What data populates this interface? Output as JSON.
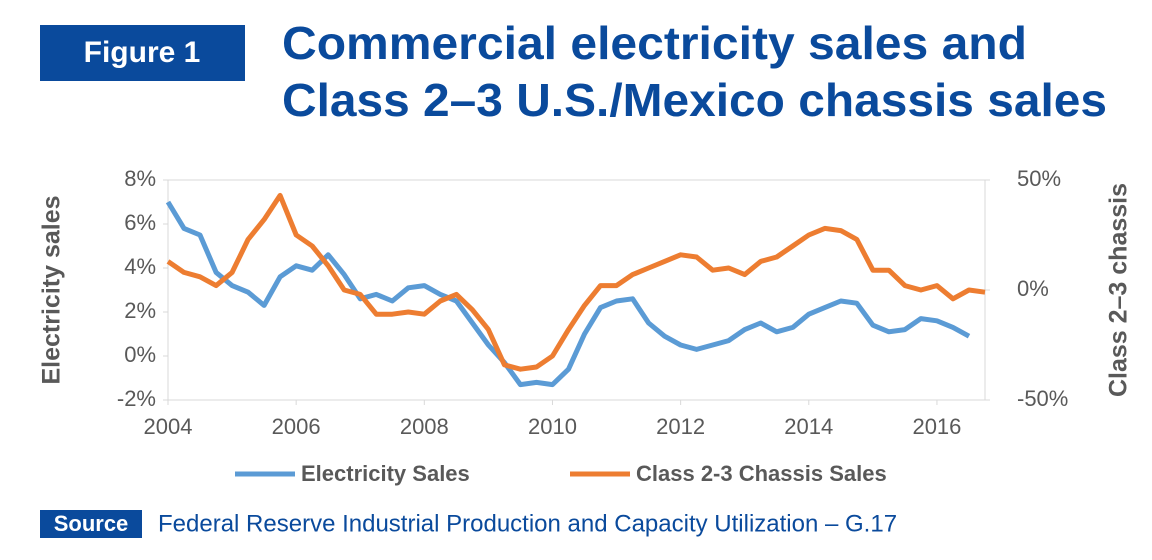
{
  "figure_label": "Figure 1",
  "chart_data": {
    "type": "line",
    "title": [
      "Commercial electricity sales and",
      "Class 2–3 U.S./Mexico chassis sales"
    ],
    "y_label": "Electricity sales",
    "y2_label": "Class 2–3 chassis",
    "x": [
      2004,
      2004.25,
      2004.5,
      2004.75,
      2005,
      2005.25,
      2005.5,
      2005.75,
      2006,
      2006.25,
      2006.5,
      2006.75,
      2007,
      2007.25,
      2007.5,
      2007.75,
      2008,
      2008.25,
      2008.5,
      2008.75,
      2009,
      2009.25,
      2009.5,
      2009.75,
      2010,
      2010.25,
      2010.5,
      2010.75,
      2011,
      2011.25,
      2011.5,
      2011.75,
      2012,
      2012.25,
      2012.5,
      2012.75,
      2013,
      2013.25,
      2013.5,
      2013.75,
      2014,
      2014.25,
      2014.5,
      2014.75,
      2015,
      2015.25,
      2015.5,
      2015.75,
      2016,
      2016.25,
      2016.5,
      2016.75
    ],
    "series": [
      {
        "name": "Electricity Sales",
        "color": "#5b9bd5",
        "axis": "y",
        "values": [
          7.0,
          5.8,
          5.5,
          3.8,
          3.2,
          2.9,
          2.3,
          3.6,
          4.1,
          3.9,
          4.6,
          3.7,
          2.6,
          2.8,
          2.5,
          3.1,
          3.2,
          2.8,
          2.5,
          1.5,
          0.5,
          -0.3,
          -1.3,
          -1.2,
          -1.3,
          -0.6,
          1.0,
          2.2,
          2.5,
          2.6,
          1.5,
          0.9,
          0.5,
          0.3,
          0.5,
          0.7,
          1.2,
          1.5,
          1.1,
          1.3,
          1.9,
          2.2,
          2.5,
          2.4,
          1.4,
          1.1,
          1.2,
          1.7,
          1.6,
          1.3,
          0.9,
          null
        ]
      },
      {
        "name": "Class 2-3 Chassis Sales",
        "color": "#ed7d31",
        "axis": "y2",
        "values": [
          13,
          8,
          6,
          2,
          8,
          23,
          32,
          43,
          25,
          20,
          11,
          0,
          -2,
          -11,
          -11,
          -10,
          -11,
          -5,
          -2,
          -9,
          -18,
          -34,
          -36,
          -35,
          -30,
          -18,
          -7,
          2,
          2,
          7,
          10,
          13,
          16,
          15,
          9,
          10,
          7,
          13,
          15,
          20,
          25,
          28,
          27,
          23,
          9,
          9,
          2,
          0,
          2,
          -4,
          0,
          -1
        ]
      }
    ],
    "xlim": [
      2004,
      2016.75
    ],
    "xticks": [
      2004,
      2006,
      2008,
      2010,
      2012,
      2014,
      2016
    ],
    "ylim": [
      -2,
      8
    ],
    "yticks": [
      {
        "value": -2,
        "label": "-2%"
      },
      {
        "value": 0,
        "label": "0%"
      },
      {
        "value": 2,
        "label": "2%"
      },
      {
        "value": 4,
        "label": "4%"
      },
      {
        "value": 6,
        "label": "6%"
      },
      {
        "value": 8,
        "label": "8%"
      }
    ],
    "y2lim": [
      -50,
      50
    ],
    "y2ticks": [
      {
        "value": -50,
        "label": "-50%"
      },
      {
        "value": 0,
        "label": "0%"
      },
      {
        "value": 50,
        "label": "50%"
      }
    ]
  },
  "source_label": "Source",
  "source": "Federal Reserve Industrial Production and Capacity Utilization – G.17"
}
